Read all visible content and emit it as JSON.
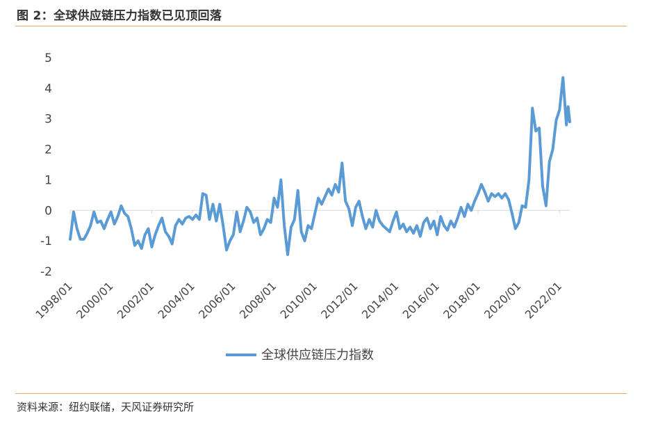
{
  "figure_title": "图 2：全球供应链压力指数已见顶回落",
  "source_note": "资料来源：纽约联储，天风证券研究所",
  "colors": {
    "series": "#5b9bd5",
    "rule": "#e5a86a",
    "axis": "#d9d9d9",
    "text": "#444444"
  },
  "chart_data": {
    "type": "line",
    "title": "",
    "xlabel": "",
    "ylabel": "",
    "ylim": [
      -2,
      5
    ],
    "yticks": [
      "5",
      "4",
      "3",
      "2",
      "1",
      "0",
      "-1",
      "-2"
    ],
    "xlim": [
      "1998/01",
      "2022/06"
    ],
    "xticks": [
      "1998/01",
      "2000/01",
      "2002/01",
      "2004/01",
      "2006/01",
      "2008/01",
      "2010/01",
      "2012/01",
      "2014/01",
      "2016/01",
      "2018/01",
      "2020/01",
      "2022/01"
    ],
    "grid": false,
    "legend_position": "bottom",
    "series": [
      {
        "name": "全球供应链压力指数",
        "points": [
          [
            "1998/01",
            -0.95
          ],
          [
            "1998/03",
            -0.05
          ],
          [
            "1998/05",
            -0.6
          ],
          [
            "1998/07",
            -0.95
          ],
          [
            "1998/09",
            -0.95
          ],
          [
            "1998/11",
            -0.75
          ],
          [
            "1999/01",
            -0.5
          ],
          [
            "1999/03",
            -0.05
          ],
          [
            "1999/05",
            -0.4
          ],
          [
            "1999/07",
            -0.35
          ],
          [
            "1999/09",
            -0.6
          ],
          [
            "1999/11",
            -0.3
          ],
          [
            "2000/01",
            -0.05
          ],
          [
            "2000/03",
            -0.45
          ],
          [
            "2000/05",
            -0.2
          ],
          [
            "2000/07",
            0.15
          ],
          [
            "2000/09",
            -0.1
          ],
          [
            "2000/11",
            -0.2
          ],
          [
            "2001/01",
            -0.6
          ],
          [
            "2001/03",
            -1.15
          ],
          [
            "2001/05",
            -1.0
          ],
          [
            "2001/07",
            -1.25
          ],
          [
            "2001/09",
            -0.8
          ],
          [
            "2001/11",
            -0.6
          ],
          [
            "2002/01",
            -1.2
          ],
          [
            "2002/03",
            -0.8
          ],
          [
            "2002/05",
            -0.5
          ],
          [
            "2002/07",
            -0.25
          ],
          [
            "2002/09",
            -0.7
          ],
          [
            "2002/11",
            -0.85
          ],
          [
            "2003/01",
            -1.1
          ],
          [
            "2003/03",
            -0.5
          ],
          [
            "2003/05",
            -0.3
          ],
          [
            "2003/07",
            -0.45
          ],
          [
            "2003/09",
            -0.25
          ],
          [
            "2003/11",
            -0.2
          ],
          [
            "2004/01",
            -0.3
          ],
          [
            "2004/03",
            -0.15
          ],
          [
            "2004/05",
            -0.3
          ],
          [
            "2004/07",
            0.55
          ],
          [
            "2004/09",
            0.5
          ],
          [
            "2004/11",
            -0.3
          ],
          [
            "2005/01",
            0.2
          ],
          [
            "2005/03",
            -0.35
          ],
          [
            "2005/05",
            0.2
          ],
          [
            "2005/07",
            -0.5
          ],
          [
            "2005/09",
            -1.3
          ],
          [
            "2005/11",
            -1.0
          ],
          [
            "2006/01",
            -0.8
          ],
          [
            "2006/03",
            -0.05
          ],
          [
            "2006/05",
            -0.7
          ],
          [
            "2006/07",
            -0.35
          ],
          [
            "2006/09",
            0.1
          ],
          [
            "2006/11",
            -0.05
          ],
          [
            "2007/01",
            -0.4
          ],
          [
            "2007/03",
            -0.25
          ],
          [
            "2007/05",
            -0.8
          ],
          [
            "2007/07",
            -0.6
          ],
          [
            "2007/09",
            -0.3
          ],
          [
            "2007/11",
            -0.4
          ],
          [
            "2008/01",
            0.4
          ],
          [
            "2008/03",
            0.1
          ],
          [
            "2008/05",
            1.0
          ],
          [
            "2008/07",
            -0.5
          ],
          [
            "2008/09",
            -1.45
          ],
          [
            "2008/11",
            -0.55
          ],
          [
            "2009/01",
            -0.3
          ],
          [
            "2009/03",
            0.65
          ],
          [
            "2009/05",
            -0.7
          ],
          [
            "2009/07",
            -1.0
          ],
          [
            "2009/09",
            -0.5
          ],
          [
            "2009/11",
            -0.6
          ],
          [
            "2010/01",
            -0.1
          ],
          [
            "2010/03",
            0.4
          ],
          [
            "2010/05",
            0.2
          ],
          [
            "2010/07",
            0.45
          ],
          [
            "2010/09",
            0.7
          ],
          [
            "2010/11",
            0.5
          ],
          [
            "2011/01",
            0.85
          ],
          [
            "2011/03",
            0.6
          ],
          [
            "2011/05",
            1.55
          ],
          [
            "2011/07",
            0.3
          ],
          [
            "2011/09",
            0.05
          ],
          [
            "2011/11",
            -0.5
          ],
          [
            "2012/01",
            0.1
          ],
          [
            "2012/03",
            0.3
          ],
          [
            "2012/05",
            -0.2
          ],
          [
            "2012/07",
            -0.6
          ],
          [
            "2012/09",
            -0.3
          ],
          [
            "2012/11",
            -0.55
          ],
          [
            "2013/01",
            0.0
          ],
          [
            "2013/03",
            -0.35
          ],
          [
            "2013/05",
            -0.5
          ],
          [
            "2013/07",
            -0.6
          ],
          [
            "2013/09",
            -0.7
          ],
          [
            "2013/11",
            -0.35
          ],
          [
            "2014/01",
            -0.05
          ],
          [
            "2014/03",
            -0.6
          ],
          [
            "2014/05",
            -0.45
          ],
          [
            "2014/07",
            -0.7
          ],
          [
            "2014/09",
            -0.55
          ],
          [
            "2014/11",
            -0.75
          ],
          [
            "2015/01",
            -0.5
          ],
          [
            "2015/03",
            -0.85
          ],
          [
            "2015/05",
            -0.4
          ],
          [
            "2015/07",
            -0.25
          ],
          [
            "2015/09",
            -0.6
          ],
          [
            "2015/11",
            -0.35
          ],
          [
            "2016/01",
            -0.8
          ],
          [
            "2016/03",
            -0.2
          ],
          [
            "2016/05",
            -0.5
          ],
          [
            "2016/07",
            -0.65
          ],
          [
            "2016/09",
            -0.35
          ],
          [
            "2016/11",
            -0.55
          ],
          [
            "2017/01",
            -0.25
          ],
          [
            "2017/03",
            0.1
          ],
          [
            "2017/05",
            -0.2
          ],
          [
            "2017/07",
            0.2
          ],
          [
            "2017/09",
            0.0
          ],
          [
            "2017/11",
            0.3
          ],
          [
            "2018/01",
            0.55
          ],
          [
            "2018/03",
            0.85
          ],
          [
            "2018/05",
            0.6
          ],
          [
            "2018/07",
            0.3
          ],
          [
            "2018/09",
            0.55
          ],
          [
            "2018/11",
            0.45
          ],
          [
            "2019/01",
            0.55
          ],
          [
            "2019/03",
            0.4
          ],
          [
            "2019/05",
            0.55
          ],
          [
            "2019/07",
            0.35
          ],
          [
            "2019/09",
            -0.1
          ],
          [
            "2019/11",
            -0.6
          ],
          [
            "2020/01",
            -0.4
          ],
          [
            "2020/03",
            0.15
          ],
          [
            "2020/05",
            0.1
          ],
          [
            "2020/07",
            1.0
          ],
          [
            "2020/09",
            3.35
          ],
          [
            "2020/11",
            2.6
          ],
          [
            "2021/01",
            2.7
          ],
          [
            "2021/03",
            0.8
          ],
          [
            "2021/05",
            0.15
          ],
          [
            "2021/07",
            1.6
          ],
          [
            "2021/09",
            2.0
          ],
          [
            "2021/11",
            2.95
          ],
          [
            "2022/01",
            3.3
          ],
          [
            "2022/03",
            4.35
          ],
          [
            "2022/05",
            2.8
          ],
          [
            "2022/06",
            3.4
          ],
          [
            "2022/07",
            2.9
          ]
        ]
      }
    ]
  }
}
